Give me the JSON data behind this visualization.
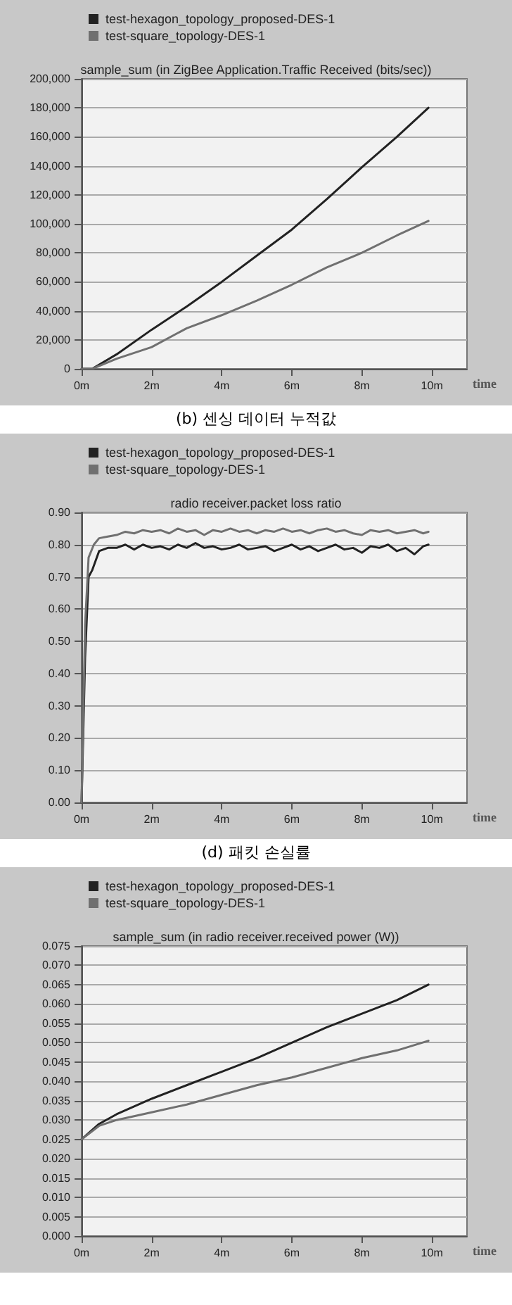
{
  "chart_data": [
    {
      "type": "line",
      "title": "sample_sum (in ZigBee Application.Traffic Received (bits/sec))",
      "subtitle": "(b) 센싱 데이터 누적값",
      "xlabel": "time",
      "legend": "top left",
      "grid": "y",
      "marker": "none",
      "line_style": "solid",
      "xlim": [
        0,
        11
      ],
      "xticks": [
        {
          "value": 0,
          "label": "0m"
        },
        {
          "value": 2,
          "label": "2m"
        },
        {
          "value": 4,
          "label": "4m"
        },
        {
          "value": 6,
          "label": "6m"
        },
        {
          "value": 8,
          "label": "8m"
        },
        {
          "value": 10,
          "label": "10m"
        }
      ],
      "ylim": [
        0,
        200000
      ],
      "yticks": [
        0,
        {
          "value": 20000,
          "label": "20,000"
        },
        {
          "value": 40000,
          "label": "40,000"
        },
        {
          "value": 60000,
          "label": "60,000"
        },
        {
          "value": 80000,
          "label": "80,000"
        },
        {
          "value": 100000,
          "label": "100,000"
        },
        {
          "value": 120000,
          "label": "120,000"
        },
        {
          "value": 140000,
          "label": "140,000"
        },
        {
          "value": 160000,
          "label": "160,000"
        },
        {
          "value": 180000,
          "label": "180,000"
        },
        {
          "value": 200000,
          "label": "200,000"
        }
      ],
      "x": [
        0,
        0.3,
        1,
        2,
        3,
        4,
        5,
        6,
        7,
        8,
        9,
        9.9
      ],
      "series": [
        {
          "name": "test-hexagon_topology_proposed-DES-1",
          "color": "#222222",
          "values": [
            0,
            0,
            10000,
            27000,
            43000,
            60000,
            78000,
            96000,
            117000,
            139000,
            160000,
            180000
          ]
        },
        {
          "name": "test-square_topology-DES-1",
          "color": "#707070",
          "values": [
            0,
            0,
            7000,
            15000,
            28000,
            37000,
            47000,
            58000,
            70000,
            80000,
            92000,
            102000
          ]
        }
      ]
    },
    {
      "type": "line",
      "title": "radio receiver.packet loss ratio",
      "subtitle": "(d) 패킷 손실률",
      "xlabel": "time",
      "legend": "top left",
      "grid": "y",
      "marker": "none",
      "line_style": "solid",
      "xlim": [
        0,
        11
      ],
      "xticks": [
        {
          "value": 0,
          "label": "0m"
        },
        {
          "value": 2,
          "label": "2m"
        },
        {
          "value": 4,
          "label": "4m"
        },
        {
          "value": 6,
          "label": "6m"
        },
        {
          "value": 8,
          "label": "8m"
        },
        {
          "value": 10,
          "label": "10m"
        }
      ],
      "ylim": [
        0,
        0.9
      ],
      "yticks": [
        {
          "value": 0,
          "label": "0.00"
        },
        {
          "value": 0.1,
          "label": "0.10"
        },
        {
          "value": 0.2,
          "label": "0.20"
        },
        {
          "value": 0.3,
          "label": "0.30"
        },
        {
          "value": 0.4,
          "label": "0.40"
        },
        {
          "value": 0.5,
          "label": "0.50"
        },
        {
          "value": 0.6,
          "label": "0.60"
        },
        {
          "value": 0.7,
          "label": "0.70"
        },
        {
          "value": 0.8,
          "label": "0.80"
        },
        {
          "value": 0.9,
          "label": "0.90"
        }
      ],
      "series": [
        {
          "name": "test-hexagon_topology_proposed-DES-1",
          "color": "#222222",
          "x": [
            0,
            0.1,
            0.2,
            0.3,
            0.4,
            0.5,
            0.75,
            1,
            1.25,
            1.5,
            1.75,
            2,
            2.25,
            2.5,
            2.75,
            3,
            3.25,
            3.5,
            3.75,
            4,
            4.25,
            4.5,
            4.75,
            5,
            5.25,
            5.5,
            5.75,
            6,
            6.25,
            6.5,
            6.75,
            7,
            7.25,
            7.5,
            7.75,
            8,
            8.25,
            8.5,
            8.75,
            9,
            9.25,
            9.5,
            9.75,
            9.9
          ],
          "values": [
            0,
            0.45,
            0.7,
            0.72,
            0.75,
            0.78,
            0.79,
            0.79,
            0.8,
            0.785,
            0.8,
            0.79,
            0.795,
            0.785,
            0.8,
            0.79,
            0.805,
            0.79,
            0.795,
            0.785,
            0.79,
            0.8,
            0.785,
            0.79,
            0.795,
            0.78,
            0.79,
            0.8,
            0.785,
            0.795,
            0.78,
            0.79,
            0.8,
            0.785,
            0.79,
            0.775,
            0.795,
            0.79,
            0.8,
            0.78,
            0.79,
            0.77,
            0.795,
            0.8
          ]
        },
        {
          "name": "test-square_topology-DES-1",
          "color": "#707070",
          "x": [
            0,
            0.1,
            0.2,
            0.35,
            0.5,
            0.75,
            1,
            1.25,
            1.5,
            1.75,
            2,
            2.25,
            2.5,
            2.75,
            3,
            3.25,
            3.5,
            3.75,
            4,
            4.25,
            4.5,
            4.75,
            5,
            5.25,
            5.5,
            5.75,
            6,
            6.25,
            6.5,
            6.75,
            7,
            7.25,
            7.5,
            7.75,
            8,
            8.25,
            8.5,
            8.75,
            9,
            9.25,
            9.5,
            9.75,
            9.9
          ],
          "values": [
            0,
            0.55,
            0.76,
            0.8,
            0.82,
            0.825,
            0.83,
            0.84,
            0.835,
            0.845,
            0.84,
            0.845,
            0.835,
            0.85,
            0.84,
            0.845,
            0.83,
            0.845,
            0.84,
            0.85,
            0.84,
            0.845,
            0.835,
            0.845,
            0.84,
            0.85,
            0.84,
            0.845,
            0.835,
            0.845,
            0.85,
            0.84,
            0.845,
            0.835,
            0.83,
            0.845,
            0.84,
            0.845,
            0.835,
            0.84,
            0.845,
            0.835,
            0.84
          ]
        }
      ]
    },
    {
      "type": "line",
      "title": "sample_sum (in radio receiver.received power (W))",
      "xlabel": "time",
      "legend": "top left",
      "grid": "y",
      "marker": "none",
      "line_style": "solid",
      "xlim": [
        0,
        11
      ],
      "xticks": [
        {
          "value": 0,
          "label": "0m"
        },
        {
          "value": 2,
          "label": "2m"
        },
        {
          "value": 4,
          "label": "4m"
        },
        {
          "value": 6,
          "label": "6m"
        },
        {
          "value": 8,
          "label": "8m"
        },
        {
          "value": 10,
          "label": "10m"
        }
      ],
      "ylim": [
        0,
        0.075
      ],
      "yticks": [
        {
          "value": 0,
          "label": "0.000"
        },
        {
          "value": 0.005,
          "label": "0.005"
        },
        {
          "value": 0.01,
          "label": "0.010"
        },
        {
          "value": 0.015,
          "label": "0.015"
        },
        {
          "value": 0.02,
          "label": "0.020"
        },
        {
          "value": 0.025,
          "label": "0.025"
        },
        {
          "value": 0.03,
          "label": "0.030"
        },
        {
          "value": 0.035,
          "label": "0.035"
        },
        {
          "value": 0.04,
          "label": "0.040"
        },
        {
          "value": 0.045,
          "label": "0.045"
        },
        {
          "value": 0.05,
          "label": "0.050"
        },
        {
          "value": 0.055,
          "label": "0.055"
        },
        {
          "value": 0.06,
          "label": "0.060"
        },
        {
          "value": 0.065,
          "label": "0.065"
        },
        {
          "value": 0.07,
          "label": "0.070"
        },
        {
          "value": 0.075,
          "label": "0.075"
        }
      ],
      "x": [
        0,
        0.5,
        1,
        2,
        3,
        4,
        5,
        6,
        7,
        8,
        9,
        9.9
      ],
      "series": [
        {
          "name": "test-hexagon_topology_proposed-DES-1",
          "color": "#222222",
          "values": [
            0.025,
            0.029,
            0.0315,
            0.0355,
            0.039,
            0.0425,
            0.046,
            0.05,
            0.054,
            0.0575,
            0.061,
            0.065
          ]
        },
        {
          "name": "test-square_topology-DES-1",
          "color": "#707070",
          "values": [
            0.025,
            0.0285,
            0.03,
            0.032,
            0.034,
            0.0365,
            0.039,
            0.041,
            0.0435,
            0.046,
            0.048,
            0.0505
          ]
        }
      ]
    }
  ]
}
